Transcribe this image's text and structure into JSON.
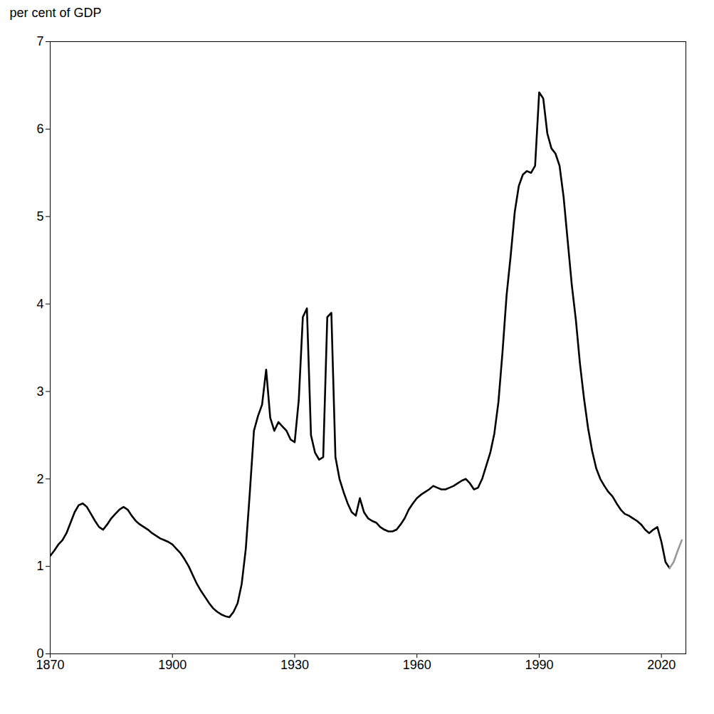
{
  "chart_data": {
    "type": "line",
    "ylabel": "per cent of GDP",
    "xlim": [
      1870,
      2026
    ],
    "ylim": [
      0,
      7
    ],
    "xticks": [
      1870,
      1900,
      1930,
      1960,
      1990,
      2020
    ],
    "yticks": [
      0,
      1,
      2,
      3,
      4,
      5,
      6,
      7
    ],
    "grid": false,
    "series": [
      {
        "color": "#000000",
        "x": [
          1870,
          1871,
          1872,
          1873,
          1874,
          1875,
          1876,
          1877,
          1878,
          1879,
          1880,
          1881,
          1882,
          1883,
          1884,
          1885,
          1886,
          1887,
          1888,
          1889,
          1890,
          1891,
          1892,
          1893,
          1894,
          1895,
          1896,
          1897,
          1898,
          1899,
          1900,
          1901,
          1902,
          1903,
          1904,
          1905,
          1906,
          1907,
          1908,
          1909,
          1910,
          1911,
          1912,
          1913,
          1914,
          1915,
          1916,
          1917,
          1918,
          1919,
          1920,
          1921,
          1922,
          1923,
          1924,
          1925,
          1926,
          1927,
          1928,
          1929,
          1930,
          1931,
          1932,
          1933,
          1934,
          1935,
          1936,
          1937,
          1938,
          1939,
          1940,
          1941,
          1942,
          1943,
          1944,
          1945,
          1946,
          1947,
          1948,
          1949,
          1950,
          1951,
          1952,
          1953,
          1954,
          1955,
          1956,
          1957,
          1958,
          1959,
          1960,
          1961,
          1962,
          1963,
          1964,
          1965,
          1966,
          1967,
          1968,
          1969,
          1970,
          1971,
          1972,
          1973,
          1974,
          1975,
          1976,
          1977,
          1978,
          1979,
          1980,
          1981,
          1982,
          1983,
          1984,
          1985,
          1986,
          1987,
          1988,
          1989,
          1990,
          1991,
          1992,
          1993,
          1994,
          1995,
          1996,
          1997,
          1998,
          1999,
          2000,
          2001,
          2002,
          2003,
          2004,
          2005,
          2006,
          2007,
          2008,
          2009,
          2010,
          2011,
          2012,
          2013,
          2014,
          2015,
          2016,
          2017,
          2018,
          2019,
          2020,
          2021,
          2022
        ],
        "values": [
          1.12,
          1.18,
          1.25,
          1.3,
          1.38,
          1.5,
          1.62,
          1.7,
          1.72,
          1.68,
          1.6,
          1.52,
          1.45,
          1.42,
          1.48,
          1.55,
          1.6,
          1.65,
          1.68,
          1.65,
          1.58,
          1.52,
          1.48,
          1.45,
          1.42,
          1.38,
          1.35,
          1.32,
          1.3,
          1.28,
          1.25,
          1.2,
          1.15,
          1.08,
          1.0,
          0.9,
          0.8,
          0.72,
          0.65,
          0.58,
          0.52,
          0.48,
          0.45,
          0.43,
          0.42,
          0.48,
          0.58,
          0.8,
          1.2,
          1.85,
          2.55,
          2.72,
          2.85,
          3.25,
          2.7,
          2.55,
          2.65,
          2.6,
          2.55,
          2.45,
          2.42,
          2.9,
          3.85,
          3.95,
          2.5,
          2.3,
          2.22,
          2.25,
          3.85,
          3.9,
          2.25,
          2.0,
          1.85,
          1.72,
          1.62,
          1.58,
          1.78,
          1.62,
          1.55,
          1.52,
          1.5,
          1.45,
          1.42,
          1.4,
          1.4,
          1.42,
          1.48,
          1.55,
          1.65,
          1.72,
          1.78,
          1.82,
          1.85,
          1.88,
          1.92,
          1.9,
          1.88,
          1.88,
          1.9,
          1.92,
          1.95,
          1.98,
          2.0,
          1.95,
          1.88,
          1.9,
          2.0,
          2.15,
          2.3,
          2.52,
          2.88,
          3.45,
          4.1,
          4.55,
          5.05,
          5.35,
          5.48,
          5.52,
          5.5,
          5.58,
          6.42,
          6.35,
          5.95,
          5.78,
          5.72,
          5.58,
          5.22,
          4.72,
          4.22,
          3.82,
          3.32,
          2.92,
          2.58,
          2.32,
          2.12,
          2.0,
          1.92,
          1.85,
          1.8,
          1.72,
          1.65,
          1.6,
          1.58,
          1.55,
          1.52,
          1.48,
          1.42,
          1.38,
          1.42,
          1.45,
          1.28,
          1.05,
          0.98
        ]
      },
      {
        "color": "#999999",
        "x": [
          2022,
          2023,
          2024,
          2025
        ],
        "values": [
          0.98,
          1.05,
          1.18,
          1.3
        ]
      }
    ]
  }
}
